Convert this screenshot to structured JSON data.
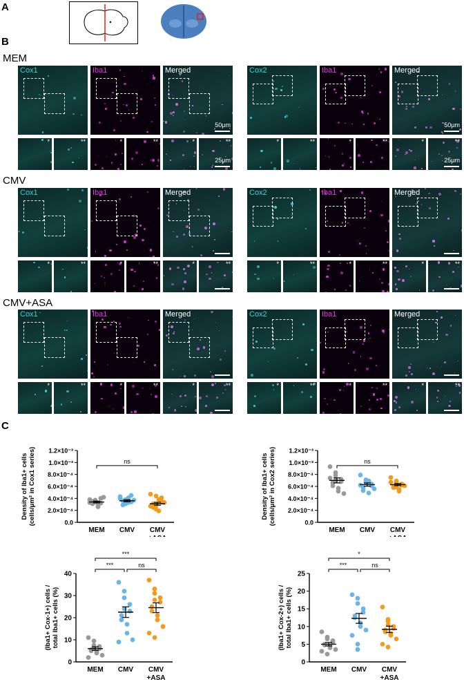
{
  "panels": {
    "a": "A",
    "b": "B",
    "c": "C"
  },
  "conditions": [
    "MEM",
    "CMV",
    "CMV+ASA"
  ],
  "channels": {
    "left": [
      "Cox1",
      "Iba1",
      "Merged"
    ],
    "right": [
      "Cox2",
      "Iba1",
      "Merged"
    ]
  },
  "scale_bars": {
    "large": "50μm",
    "small": "25μm"
  },
  "inset_marks": {
    "single": "*",
    "double": "**"
  },
  "colors": {
    "cox": "#41d6d3",
    "iba": "#e43ae4",
    "mem": "#999999",
    "cmv": "#6ab4e6",
    "asa": "#f29a1c"
  },
  "chart_data": [
    {
      "type": "scatter",
      "ylabel": [
        "Density of Iba1+ cells",
        "(cells/μm² in Cox1 series)"
      ],
      "categories": [
        "MEM",
        "CMV",
        "CMV",
        "+ASA"
      ],
      "ytick_labels": [
        "0.0",
        "2.0×10⁻⁴",
        "4.0×10⁻⁴",
        "6.0×10⁻⁴",
        "8.0×10⁻⁴",
        "1.0×10⁻³",
        "1.2×10⁻³"
      ],
      "ylim": [
        0,
        0.0012
      ],
      "series": [
        {
          "values": [
            0.00038,
            0.00034,
            0.00036,
            0.00032,
            0.0004,
            0.00031,
            0.00035,
            0.00026,
            0.0003,
            0.00042,
            0.00033,
            0.00037
          ],
          "mean": 0.00034,
          "sem": 1.5e-05
        },
        {
          "values": [
            0.00043,
            0.00031,
            0.00038,
            0.00034,
            0.00045,
            0.00036,
            0.00029,
            0.00041,
            0.00033,
            0.00037,
            0.0004,
            0.00032
          ],
          "mean": 0.00036,
          "sem": 1.7e-05
        },
        {
          "values": [
            0.00047,
            0.00022,
            0.00028,
            0.00035,
            0.00041,
            0.00031,
            0.00025,
            0.00038,
            0.00019,
            0.00033,
            0.00027,
            0.00044,
            0.00029
          ],
          "mean": 0.00031,
          "sem": 2.5e-05
        }
      ],
      "significance": [
        {
          "label": "ns",
          "from": 0,
          "to": 2
        }
      ]
    },
    {
      "type": "scatter",
      "ylabel": [
        "Density of Iba1+ cells",
        "(cells/μm² in Cox2 series)"
      ],
      "categories": [
        "MEM",
        "CMV",
        "CMV",
        "+ASA"
      ],
      "ytick_labels": [
        "0.0",
        "2.0×10⁻⁴",
        "4.0×10⁻⁴",
        "6.0×10⁻⁴",
        "8.0×10⁻⁴",
        "1.0×10⁻³",
        "1.2×10⁻³"
      ],
      "ylim": [
        0,
        0.0012
      ],
      "series": [
        {
          "values": [
            0.00093,
            0.00083,
            0.00078,
            0.00072,
            0.00068,
            0.00066,
            0.00061,
            0.00057,
            0.00052,
            0.00048,
            0.00074,
            0.0007
          ],
          "mean": 0.0007,
          "sem": 4.2e-05
        },
        {
          "values": [
            0.00079,
            0.00071,
            0.00067,
            0.00064,
            0.00061,
            0.00058,
            0.00053,
            0.00049,
            0.00069,
            0.00056,
            0.00062,
            0.00066
          ],
          "mean": 0.00063,
          "sem": 2.7e-05
        },
        {
          "values": [
            0.00075,
            0.00069,
            0.00066,
            0.00064,
            0.00062,
            0.0006,
            0.00058,
            0.00055,
            0.00052,
            0.00061,
            0.00067,
            0.00063,
            0.00059
          ],
          "mean": 0.00063,
          "sem": 1.8e-05
        }
      ],
      "significance": [
        {
          "label": "ns",
          "from": 0,
          "to": 2
        }
      ]
    },
    {
      "type": "scatter",
      "ylabel": [
        "(Iba1+ Cox-1+) cells /",
        "total Iba1+ cells (%)"
      ],
      "categories": [
        "MEM",
        "CMV",
        "CMV",
        "+ASA"
      ],
      "ytick_labels": [
        "0",
        "10",
        "20",
        "30",
        "40"
      ],
      "ylim": [
        0,
        40
      ],
      "series": [
        {
          "values": [
            11,
            9.5,
            7.5,
            7,
            6,
            5.5,
            5,
            4.5,
            4,
            3,
            2,
            6.5
          ],
          "mean": 6,
          "sem": 0.8
        },
        {
          "values": [
            36,
            32,
            29,
            26,
            23,
            21,
            19,
            17,
            13,
            10,
            9,
            24
          ],
          "mean": 22.5,
          "sem": 2.4
        },
        {
          "values": [
            37,
            33,
            31,
            29,
            27,
            25,
            23,
            21,
            19,
            16,
            13,
            11,
            28
          ],
          "mean": 24.5,
          "sem": 2.2
        }
      ],
      "significance": [
        {
          "label": "***",
          "from": 0,
          "to": 2
        },
        {
          "label": "***",
          "from": 0,
          "to": 1
        },
        {
          "label": "ns",
          "from": 1,
          "to": 2
        }
      ]
    },
    {
      "type": "scatter",
      "ylabel": [
        "(Iba1+ Cox-2+) cells /",
        "total Iba1+ cells (%)"
      ],
      "categories": [
        "MEM",
        "CMV",
        "CMV",
        "+ASA"
      ],
      "ytick_labels": [
        "0",
        "5",
        "10",
        "15",
        "20",
        "25"
      ],
      "ylim": [
        0,
        25
      ],
      "series": [
        {
          "values": [
            8.5,
            7,
            6.5,
            6,
            5.5,
            5,
            4.8,
            4.5,
            4,
            3.5,
            3,
            2.2
          ],
          "mean": 5,
          "sem": 0.5
        },
        {
          "values": [
            19,
            18,
            16.5,
            15,
            14,
            13,
            12.5,
            11,
            10,
            9,
            7.5,
            5,
            3.5
          ],
          "mean": 12.3,
          "sem": 1.4
        },
        {
          "values": [
            15.5,
            12,
            11.5,
            10,
            9.5,
            9,
            8.5,
            8,
            7.5,
            6.5,
            5,
            4.2,
            10.5
          ],
          "mean": 9.2,
          "sem": 0.9
        }
      ],
      "significance": [
        {
          "label": "*",
          "from": 0,
          "to": 2
        },
        {
          "label": "***",
          "from": 0,
          "to": 1
        },
        {
          "label": "ns",
          "from": 1,
          "to": 2
        }
      ]
    }
  ]
}
